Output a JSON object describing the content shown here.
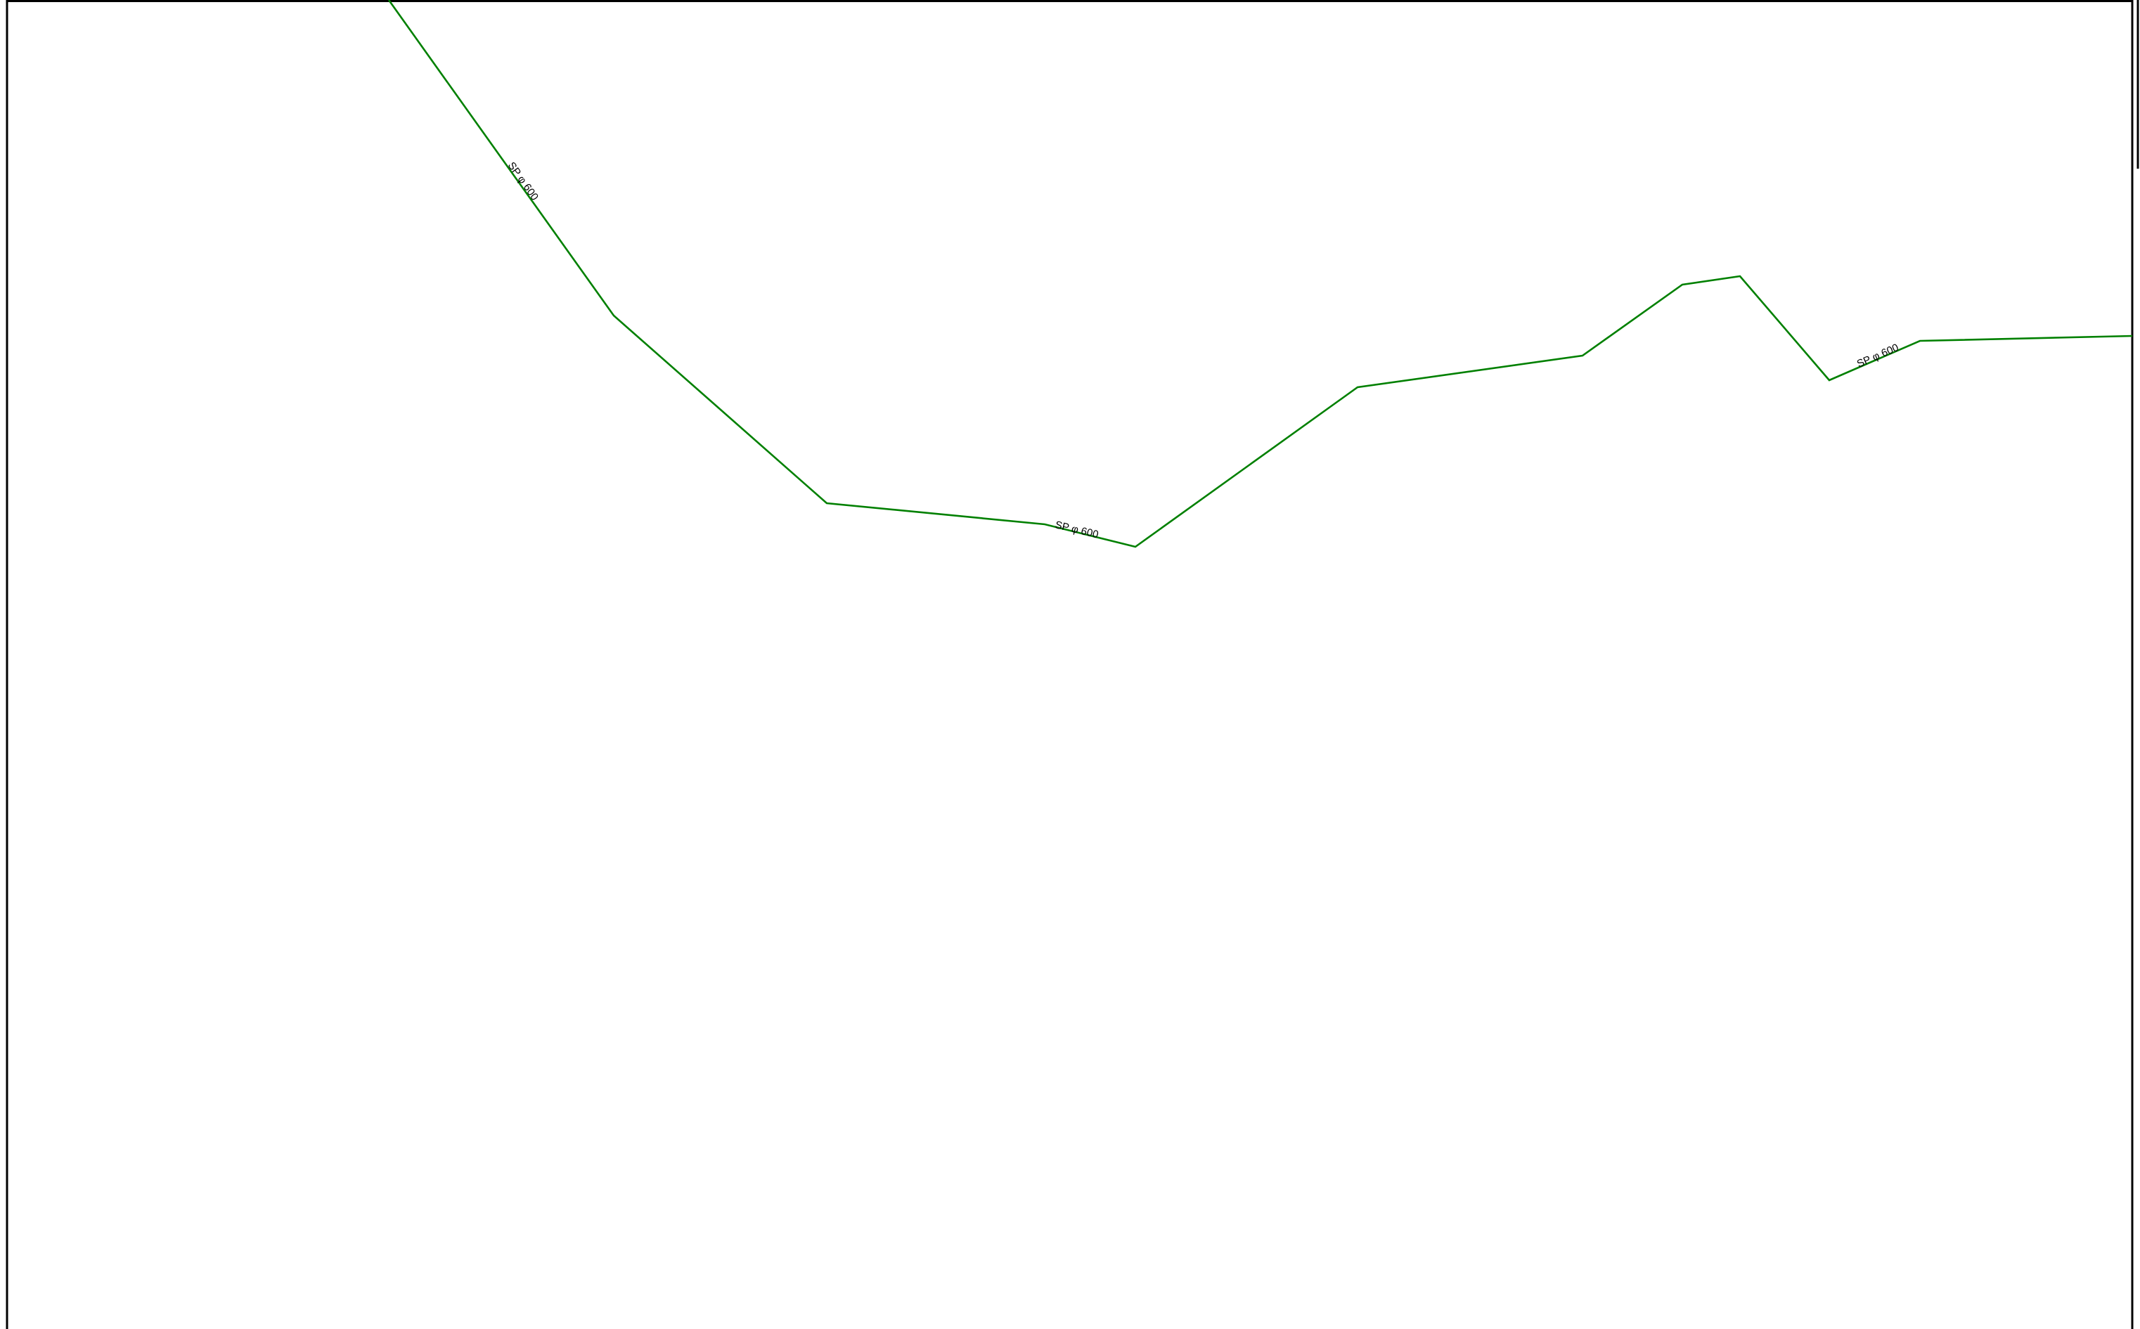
{
  "drawing": {
    "frame_color": "#000000",
    "background_color": "#ffffff"
  },
  "pipeline": {
    "color": "#008000",
    "labels": [
      {
        "text": "SP  φ 600"
      },
      {
        "text": "SP  φ 600"
      },
      {
        "text": "SP  φ 600"
      }
    ]
  }
}
